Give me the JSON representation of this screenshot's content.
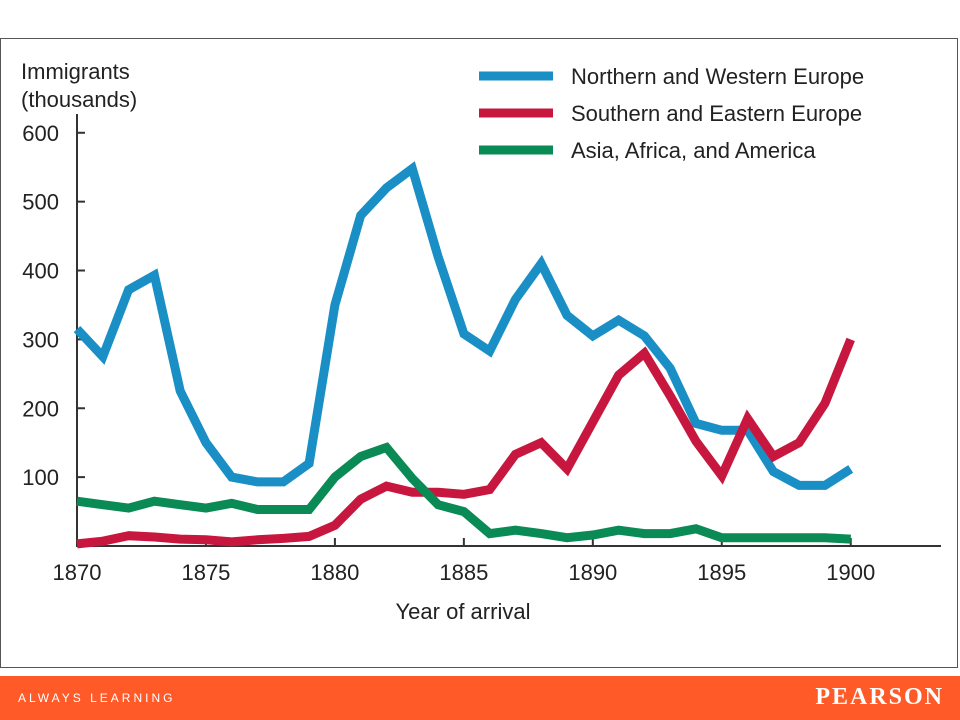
{
  "chart_data": {
    "type": "line",
    "ylabel_line1": "Immigrants",
    "ylabel_line2": "(thousands)",
    "xlabel": "Year of arrival",
    "xlim": [
      1870,
      1903.5
    ],
    "ylim": [
      0,
      620
    ],
    "x_ticks": [
      1870,
      1875,
      1880,
      1885,
      1890,
      1895,
      1900
    ],
    "y_ticks": [
      100,
      200,
      300,
      400,
      500,
      600
    ],
    "legend_position": "top-right",
    "x": [
      1870,
      1871,
      1872,
      1873,
      1874,
      1875,
      1876,
      1877,
      1878,
      1879,
      1880,
      1881,
      1882,
      1883,
      1884,
      1885,
      1886,
      1887,
      1888,
      1889,
      1890,
      1891,
      1892,
      1893,
      1894,
      1895,
      1896,
      1897,
      1898,
      1899,
      1900
    ],
    "series": [
      {
        "name": "Northern and Western Europe",
        "color": "#1a8fc5",
        "values": [
          315,
          275,
          372,
          393,
          225,
          150,
          100,
          93,
          93,
          120,
          350,
          480,
          520,
          548,
          420,
          308,
          283,
          358,
          410,
          335,
          305,
          328,
          305,
          258,
          178,
          168,
          168,
          108,
          88,
          88,
          112
        ]
      },
      {
        "name": "Southern and Eastern Europe",
        "color": "#c8173f",
        "values": [
          3,
          7,
          15,
          13,
          10,
          9,
          6,
          9,
          11,
          14,
          30,
          68,
          87,
          78,
          78,
          75,
          82,
          133,
          150,
          112,
          180,
          248,
          280,
          218,
          152,
          102,
          185,
          130,
          150,
          207,
          300
        ]
      },
      {
        "name": "Asia, Africa, and America",
        "color": "#0a8a55",
        "values": [
          65,
          60,
          55,
          65,
          60,
          55,
          62,
          53,
          53,
          53,
          100,
          130,
          143,
          98,
          60,
          50,
          18,
          23,
          18,
          12,
          16,
          23,
          18,
          18,
          25,
          12,
          12,
          12,
          12,
          12,
          10
        ]
      }
    ]
  },
  "footer": {
    "tagline": "ALWAYS LEARNING",
    "brand": "PEARSON",
    "color": "#ff5a28"
  }
}
